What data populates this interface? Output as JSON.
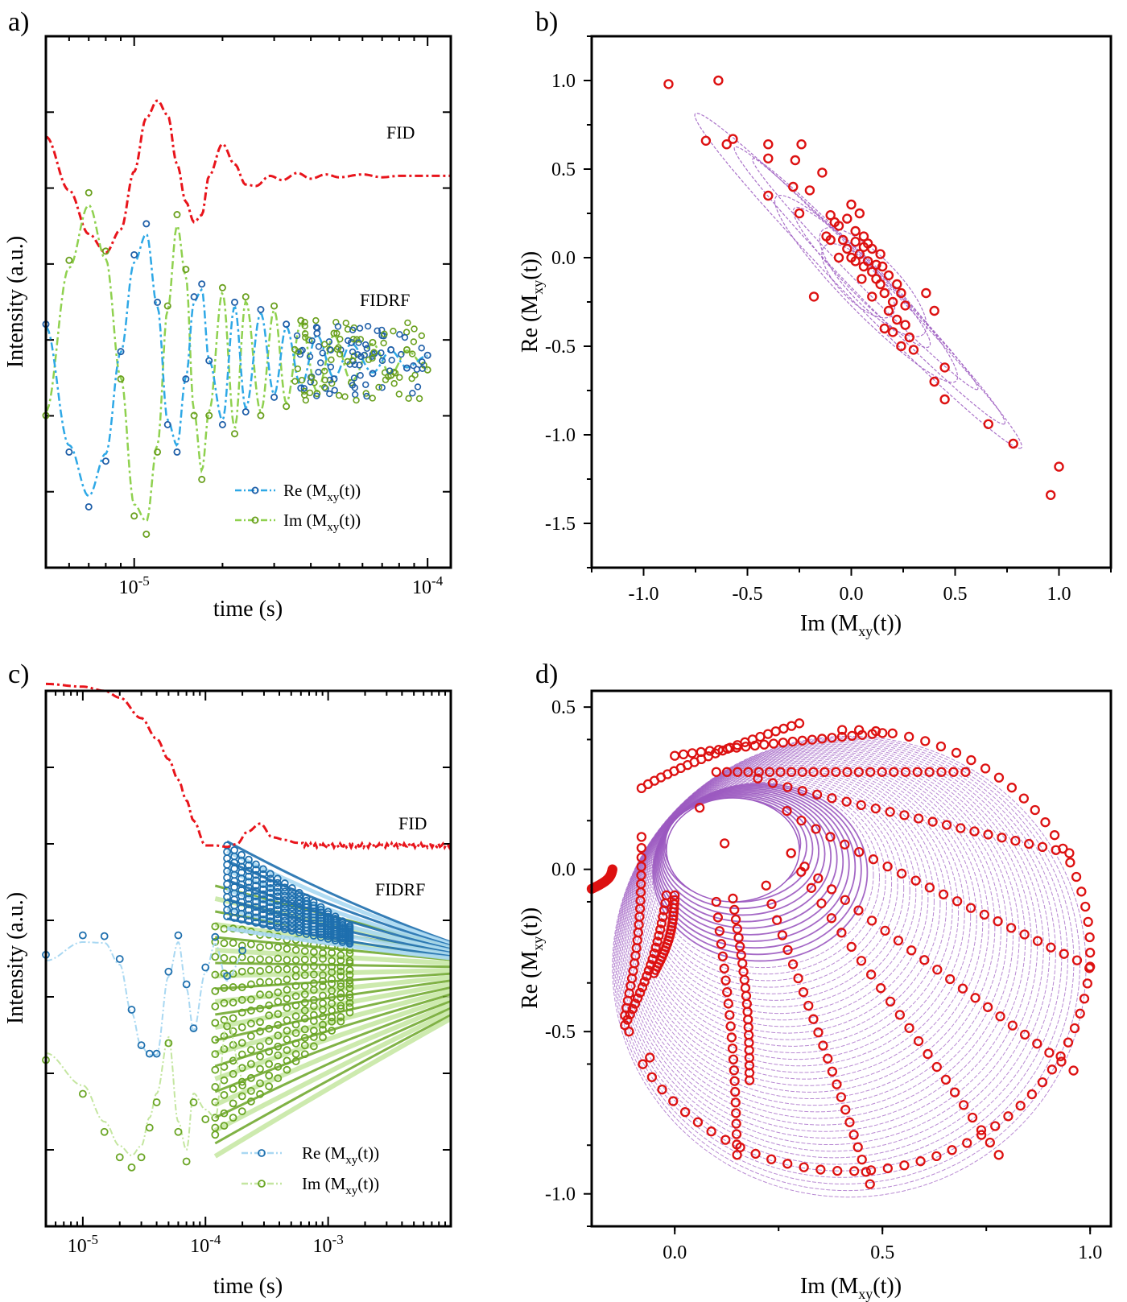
{
  "colors": {
    "fid": "#e8141b",
    "re_a": "#2ea8e6",
    "im_a": "#8fd14f",
    "re_marker_a": "#1f5fa8",
    "im_marker_a": "#6aa01e",
    "re_c_line": "#a9d8f2",
    "im_c_line": "#c4e6a0",
    "re_c_marker": "#1e6fae",
    "im_c_marker": "#6aa524",
    "ellipse": "#9b59c0",
    "scatter": "#dd1111"
  },
  "chart_data": [
    {
      "panel": "a)",
      "type": "line",
      "x_scale": "log",
      "xlabel": "time (s)",
      "ylabel": "Intensity (a.u.)",
      "xlim": [
        5e-06,
        0.00012
      ],
      "x_tick_labels": [
        {
          "value": 1e-05,
          "label": "10-5"
        },
        {
          "value": 0.0001,
          "label": "10-4"
        }
      ],
      "y_tick_labels": [],
      "annotations": [
        {
          "text": "FID",
          "near_series": "FID"
        },
        {
          "text": "FIDRF",
          "near_series": "Re"
        }
      ],
      "legend": {
        "placement": "bottom-right",
        "entries": [
          {
            "label": "Re (M",
            "sub": "xy",
            "suffix": "(t))",
            "series": "Re"
          },
          {
            "label": "Im (M",
            "sub": "xy",
            "suffix": "(t))",
            "series": "Im"
          }
        ]
      },
      "series": [
        {
          "name": "FID",
          "style": "dash-dot",
          "color": "fid",
          "t": [
            5e-06,
            6e-06,
            7e-06,
            8e-06,
            9e-06,
            1e-05,
            1.1e-05,
            1.2e-05,
            1.3e-05,
            1.4e-05,
            1.5e-05,
            1.6e-05,
            1.7e-05,
            1.8e-05,
            2e-05,
            2.2e-05,
            2.4e-05,
            2.6e-05,
            2.9e-05,
            3.2e-05,
            3.6e-05,
            4e-05,
            4.5e-05,
            5e-05,
            6e-05,
            7e-05,
            8e-05,
            0.0001,
            0.00012
          ],
          "y": [
            1.57,
            1.2,
            0.9,
            0.77,
            0.93,
            1.33,
            1.7,
            1.82,
            1.72,
            1.38,
            1.12,
            0.98,
            1.03,
            1.3,
            1.52,
            1.38,
            1.24,
            1.23,
            1.3,
            1.27,
            1.32,
            1.28,
            1.31,
            1.29,
            1.31,
            1.29,
            1.3,
            1.3,
            1.3
          ]
        },
        {
          "name": "Re",
          "style": "dash-dot-markers",
          "color": "re_a",
          "t": [
            5e-06,
            6e-06,
            7e-06,
            8e-06,
            9e-06,
            1e-05,
            1.1e-05,
            1.2e-05,
            1.3e-05,
            1.4e-05,
            1.5e-05,
            1.6e-05,
            1.7e-05,
            1.8e-05,
            2e-05,
            2.2e-05,
            2.4e-05,
            2.7e-05,
            3e-05,
            3.3e-05,
            3.7e-05,
            4.2e-05,
            4.8e-05,
            5.5e-05,
            6.5e-05,
            7.5e-05,
            8.5e-05,
            0.0001
          ],
          "y": [
            0.2,
            -0.5,
            -0.8,
            -0.55,
            0.05,
            0.58,
            0.75,
            0.32,
            -0.35,
            -0.5,
            -0.1,
            0.35,
            0.42,
            0.0,
            -0.35,
            0.32,
            -0.28,
            0.28,
            -0.2,
            0.2,
            -0.15,
            0.15,
            -0.1,
            0.1,
            -0.07,
            0.06,
            -0.04,
            0.03
          ]
        },
        {
          "name": "Im",
          "style": "dash-dot-markers",
          "color": "im_a",
          "t": [
            5e-06,
            6e-06,
            7e-06,
            8e-06,
            9e-06,
            1e-05,
            1.1e-05,
            1.2e-05,
            1.3e-05,
            1.4e-05,
            1.5e-05,
            1.6e-05,
            1.7e-05,
            1.8e-05,
            2e-05,
            2.2e-05,
            2.4e-05,
            2.7e-05,
            3e-05,
            3.3e-05,
            3.7e-05,
            4.2e-05,
            4.8e-05,
            5.5e-05,
            6.5e-05,
            7.5e-05,
            8.5e-05,
            0.0001
          ],
          "y": [
            -0.3,
            0.55,
            0.92,
            0.6,
            -0.1,
            -0.85,
            -0.95,
            -0.5,
            0.3,
            0.8,
            0.5,
            -0.3,
            -0.65,
            -0.3,
            0.4,
            -0.4,
            0.35,
            -0.3,
            0.3,
            -0.25,
            0.22,
            -0.18,
            0.15,
            -0.12,
            0.1,
            -0.08,
            0.06,
            -0.05
          ]
        }
      ]
    },
    {
      "panel": "b)",
      "type": "scatter",
      "xlabel": "Im (M",
      "xlabel_sub": "xy",
      "xlabel_suffix": "(t))",
      "ylabel": "Re (M",
      "ylabel_sub": "xy",
      "ylabel_suffix": "(t))",
      "xlim": [
        -1.25,
        1.25
      ],
      "ylim": [
        -1.75,
        1.25
      ],
      "xticks": [
        -1.0,
        -0.5,
        0.0,
        0.5,
        1.0
      ],
      "xtick_labels": [
        "-1.0",
        "-0.5",
        "0.0",
        "0.5",
        "1.0"
      ],
      "yticks": [
        1.0,
        0.5,
        0.0,
        -0.5,
        -1.0,
        -1.5
      ],
      "ytick_labels": [
        "1.0",
        "0.5",
        "0.0",
        "-0.5",
        "-1.0",
        "-1.5"
      ],
      "points": [
        [
          -0.88,
          0.98
        ],
        [
          -0.64,
          1.0
        ],
        [
          -0.7,
          0.66
        ],
        [
          -0.6,
          0.64
        ],
        [
          -0.57,
          0.67
        ],
        [
          -0.4,
          0.64
        ],
        [
          -0.4,
          0.56
        ],
        [
          -0.4,
          0.35
        ],
        [
          -0.27,
          0.55
        ],
        [
          -0.24,
          0.64
        ],
        [
          -0.2,
          0.38
        ],
        [
          -0.28,
          0.4
        ],
        [
          -0.25,
          0.25
        ],
        [
          -0.14,
          0.48
        ],
        [
          -0.18,
          -0.22
        ],
        [
          -0.1,
          0.24
        ],
        [
          -0.08,
          0.2
        ],
        [
          -0.12,
          0.12
        ],
        [
          -0.06,
          0.18
        ],
        [
          -0.04,
          0.1
        ],
        [
          0.0,
          0.3
        ],
        [
          0.04,
          0.25
        ],
        [
          0.02,
          0.15
        ],
        [
          0.06,
          0.12
        ],
        [
          0.08,
          0.08
        ],
        [
          -0.02,
          0.05
        ],
        [
          0.0,
          0.0
        ],
        [
          0.04,
          0.02
        ],
        [
          -0.06,
          0.0
        ],
        [
          0.02,
          -0.02
        ],
        [
          0.06,
          -0.05
        ],
        [
          0.1,
          -0.08
        ],
        [
          0.12,
          -0.12
        ],
        [
          0.14,
          -0.15
        ],
        [
          0.16,
          -0.2
        ],
        [
          0.2,
          -0.25
        ],
        [
          0.24,
          -0.2
        ],
        [
          0.18,
          -0.3
        ],
        [
          0.22,
          -0.35
        ],
        [
          0.16,
          -0.4
        ],
        [
          0.26,
          -0.38
        ],
        [
          0.28,
          -0.45
        ],
        [
          0.24,
          -0.5
        ],
        [
          0.3,
          -0.52
        ],
        [
          0.36,
          -0.2
        ],
        [
          0.4,
          -0.3
        ],
        [
          0.45,
          -0.62
        ],
        [
          0.4,
          -0.7
        ],
        [
          0.45,
          -0.8
        ],
        [
          0.66,
          -0.94
        ],
        [
          0.78,
          -1.05
        ],
        [
          0.96,
          -1.34
        ],
        [
          1.0,
          -1.18
        ],
        [
          0.1,
          0.05
        ],
        [
          -0.02,
          0.22
        ],
        [
          0.08,
          -0.02
        ],
        [
          0.12,
          -0.04
        ],
        [
          0.14,
          0.02
        ],
        [
          0.18,
          -0.1
        ],
        [
          0.22,
          -0.15
        ],
        [
          0.1,
          -0.22
        ],
        [
          0.26,
          -0.27
        ],
        [
          0.2,
          -0.42
        ],
        [
          0.06,
          0.06
        ],
        [
          -0.1,
          0.1
        ],
        [
          0.02,
          0.09
        ],
        [
          0.05,
          -0.12
        ],
        [
          0.15,
          -0.05
        ]
      ]
    },
    {
      "panel": "c)",
      "type": "line",
      "x_scale": "log",
      "xlabel": "time (s)",
      "ylabel": "Intensity (a.u.)",
      "xlim": [
        5e-06,
        0.01
      ],
      "x_tick_labels": [
        {
          "value": 1e-05,
          "label": "10-5"
        },
        {
          "value": 0.0001,
          "label": "10-4"
        },
        {
          "value": 0.001,
          "label": "10-3"
        }
      ],
      "y_tick_labels": [],
      "annotations": [
        {
          "text": "FID",
          "near_series": "FID"
        },
        {
          "text": "FIDRF",
          "near_series": "Re"
        }
      ],
      "legend": {
        "placement": "bottom-right",
        "entries": [
          {
            "label": "Re (M",
            "sub": "xy",
            "suffix": "(t))",
            "series": "Re"
          },
          {
            "label": "Im (M",
            "sub": "xy",
            "suffix": "(t))",
            "series": "Im"
          }
        ]
      },
      "series": [
        {
          "name": "FID",
          "style": "dash-dot",
          "color": "fid",
          "t": [
            5e-06,
            1e-05,
            1.5e-05,
            2e-05,
            3e-05,
            4e-05,
            5e-05,
            6e-05,
            7e-05,
            8e-05,
            0.0001,
            0.00012,
            0.00015,
            0.00018,
            0.00022,
            0.00028,
            0.00035,
            0.00045,
            0.00055,
            0.0007,
            0.001,
            0.002,
            0.005,
            0.01
          ],
          "y": [
            2.0,
            1.98,
            1.95,
            1.9,
            1.75,
            1.6,
            1.45,
            1.3,
            1.15,
            1.0,
            0.82,
            0.82,
            0.81,
            0.83,
            0.92,
            0.98,
            0.88,
            0.86,
            0.84,
            0.82,
            0.82,
            0.82,
            0.82,
            0.82
          ]
        },
        {
          "name": "Re",
          "style": "dash-dot-markers",
          "color": "re_c",
          "t": [
            5e-06,
            1e-05,
            1.5e-05,
            2e-05,
            2.5e-05,
            3e-05,
            3.5e-05,
            4e-05,
            5e-05,
            6e-05,
            7e-05,
            8e-05,
            0.0001,
            0.00012,
            0.00015,
            0.0002
          ],
          "y": [
            0.45,
            0.68,
            0.67,
            0.4,
            -0.2,
            -0.62,
            -0.72,
            -0.72,
            0.25,
            0.68,
            0.1,
            -0.42,
            0.3,
            0.66,
            0.2,
            0.5
          ]
        },
        {
          "name": "Im",
          "style": "dash-dot-markers",
          "color": "im_c",
          "t": [
            5e-06,
            1e-05,
            1.5e-05,
            2e-05,
            2.5e-05,
            3e-05,
            3.5e-05,
            4e-05,
            5e-05,
            6e-05,
            7e-05,
            8e-05,
            0.0001,
            0.00012,
            0.00015,
            0.0002
          ],
          "y": [
            -0.7,
            -1.1,
            -1.55,
            -1.85,
            -1.97,
            -1.85,
            -1.5,
            -1.2,
            -0.5,
            -1.55,
            -1.9,
            -1.2,
            -1.4,
            -1.5,
            -0.3,
            -1.0
          ]
        }
      ]
    },
    {
      "panel": "d)",
      "type": "scatter",
      "xlabel": "Im (M",
      "xlabel_sub": "xy",
      "xlabel_suffix": "(t))",
      "ylabel": "Re (M",
      "ylabel_sub": "xy",
      "ylabel_suffix": "(t))",
      "xlim": [
        -0.2,
        1.05
      ],
      "ylim": [
        -1.1,
        0.55
      ],
      "xticks": [
        0.0,
        0.5,
        1.0
      ],
      "xtick_labels": [
        "0.0",
        "0.5",
        "1.0"
      ],
      "yticks": [
        0.5,
        0.0,
        -0.5,
        -1.0
      ],
      "ytick_labels": [
        "0.5",
        "0.0",
        "-0.5",
        "-1.0"
      ],
      "inner_ellipse": {
        "cx": 0.14,
        "cy": 0.06,
        "rx": 0.16,
        "ry": 0.16
      },
      "arms": [
        {
          "from": [
            -0.15,
            0.0
          ],
          "to": [
            -0.2,
            -0.06
          ]
        },
        {
          "from": [
            -0.08,
            0.1
          ],
          "to": [
            -0.12,
            -0.45
          ]
        },
        {
          "from": [
            -0.02,
            -0.08
          ],
          "to": [
            -0.12,
            -0.48
          ]
        },
        {
          "from": [
            0.0,
            -0.08
          ],
          "to": [
            -0.05,
            -0.32
          ]
        },
        {
          "from": [
            0.1,
            -0.1
          ],
          "to": [
            0.15,
            -0.88
          ]
        },
        {
          "from": [
            0.14,
            -0.09
          ],
          "to": [
            0.18,
            -0.65
          ]
        },
        {
          "from": [
            0.22,
            -0.05
          ],
          "to": [
            0.47,
            -0.97
          ]
        },
        {
          "from": [
            0.28,
            0.05
          ],
          "to": [
            0.78,
            -0.88
          ]
        },
        {
          "from": [
            0.28,
            0.05
          ],
          "to": [
            0.96,
            -0.62
          ]
        },
        {
          "from": [
            0.27,
            0.18
          ],
          "to": [
            1.0,
            -0.3
          ]
        },
        {
          "from": [
            0.2,
            0.28
          ],
          "to": [
            0.95,
            0.05
          ]
        },
        {
          "from": [
            0.1,
            0.3
          ],
          "to": [
            0.7,
            0.3
          ]
        },
        {
          "from": [
            0.0,
            0.35
          ],
          "to": [
            0.5,
            0.42
          ]
        },
        {
          "from": [
            -0.08,
            0.25
          ],
          "to": [
            0.3,
            0.45
          ]
        }
      ],
      "isolated_points": [
        [
          0.06,
          0.19
        ],
        [
          0.12,
          0.08
        ],
        [
          -0.06,
          -0.58
        ],
        [
          -0.11,
          -0.5
        ]
      ]
    }
  ]
}
